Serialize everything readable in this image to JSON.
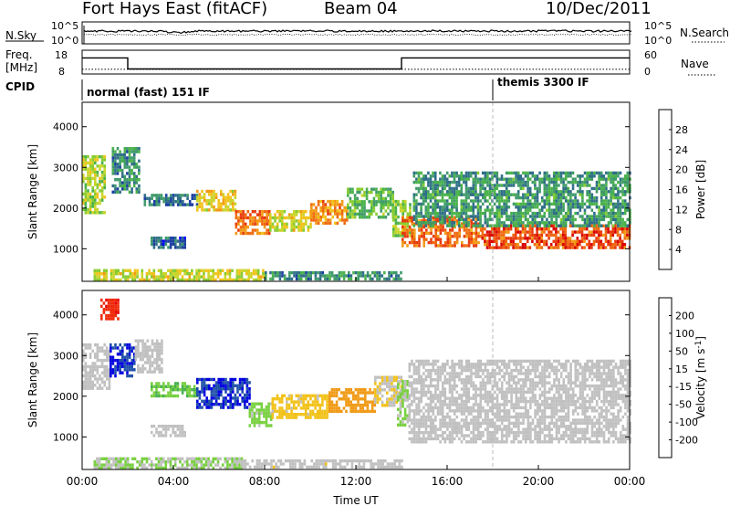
{
  "header": {
    "station": "Fort Hays East (fitACF)",
    "beam": "Beam 04",
    "date": "10/Dec/2011"
  },
  "top_panels": {
    "nsky": {
      "label": "N.Sky",
      "ticks": [
        "10^5",
        "10^0"
      ],
      "right_label": "N.Search",
      "right_ticks": [
        "10^5",
        "10^0"
      ]
    },
    "freq": {
      "label_line1": "Freq.",
      "label_line2": "[MHz]",
      "ticks": [
        "18",
        "8"
      ],
      "right_label": "Nave",
      "right_ticks": [
        "60",
        "0"
      ]
    },
    "cpid": {
      "label": "CPID",
      "modes": [
        {
          "name": "normal (fast) 151 IF",
          "start_hour": 0
        },
        {
          "name": "themis 3300 IF",
          "start_hour": 18
        }
      ]
    }
  },
  "chart_data": [
    {
      "type": "heatmap",
      "name": "power",
      "xlabel": "",
      "ylabel": "Slant Range [km]",
      "xlim": [
        0,
        24
      ],
      "ylim": [
        200,
        4600
      ],
      "y_ticks": [
        1000,
        2000,
        3000,
        4000
      ],
      "y_tick_labels": [
        "1000",
        "2000",
        "3000",
        "4000"
      ],
      "colorbar": {
        "label": "Power [dB]",
        "tick_labels": [
          "28",
          "24",
          "20",
          "16",
          "12",
          "8",
          "4"
        ],
        "tick_values": [
          28,
          24,
          20,
          16,
          12,
          8,
          4
        ],
        "range": [
          0,
          32
        ],
        "colors": [
          "#0000ff",
          "#1a3fa0",
          "#2f6e88",
          "#3f9a6a",
          "#49b24a",
          "#88cc30",
          "#c9d52a",
          "#f2c21a",
          "#f29a14",
          "#ef6a10",
          "#e83a0c",
          "#d80000"
        ]
      },
      "features": [
        {
          "x0": 0.0,
          "x1": 1.0,
          "y0": 1900,
          "y1": 3300,
          "level": 16
        },
        {
          "x0": 1.3,
          "x1": 2.5,
          "y0": 2400,
          "y1": 3500,
          "level": 8
        },
        {
          "x0": 2.7,
          "x1": 5.0,
          "y0": 2050,
          "y1": 2350,
          "level": 6
        },
        {
          "x0": 5.0,
          "x1": 6.7,
          "y0": 1950,
          "y1": 2450,
          "level": 20
        },
        {
          "x0": 6.7,
          "x1": 8.2,
          "y0": 1400,
          "y1": 1950,
          "level": 26
        },
        {
          "x0": 8.2,
          "x1": 10.0,
          "y0": 1450,
          "y1": 1950,
          "level": 18
        },
        {
          "x0": 10.0,
          "x1": 11.6,
          "y0": 1600,
          "y1": 2200,
          "level": 24
        },
        {
          "x0": 11.6,
          "x1": 13.6,
          "y0": 1800,
          "y1": 2500,
          "level": 12
        },
        {
          "x0": 13.6,
          "x1": 14.4,
          "y0": 1300,
          "y1": 2200,
          "level": 14
        },
        {
          "x0": 14.0,
          "x1": 17.5,
          "y0": 1100,
          "y1": 1800,
          "level": 26
        },
        {
          "x0": 17.5,
          "x1": 24.0,
          "y0": 1000,
          "y1": 1600,
          "level": 28
        },
        {
          "x0": 14.5,
          "x1": 24.0,
          "y0": 1600,
          "y1": 2900,
          "level": 9
        },
        {
          "x0": 3.0,
          "x1": 4.5,
          "y0": 1000,
          "y1": 1300,
          "level": 5
        },
        {
          "x0": 0.5,
          "x1": 8.0,
          "y0": 250,
          "y1": 500,
          "level": 18
        },
        {
          "x0": 8.0,
          "x1": 14.0,
          "y0": 250,
          "y1": 450,
          "level": 8
        }
      ]
    },
    {
      "type": "heatmap",
      "name": "velocity",
      "xlabel": "Time UT",
      "ylabel": "Slant Range [km]",
      "xlim": [
        0,
        24
      ],
      "ylim": [
        200,
        4600
      ],
      "x_ticks": [
        0,
        4,
        8,
        12,
        16,
        20,
        24
      ],
      "x_tick_labels": [
        "00:00",
        "04:00",
        "08:00",
        "12:00",
        "16:00",
        "20:00",
        "00:00"
      ],
      "y_ticks": [
        1000,
        2000,
        3000,
        4000
      ],
      "y_tick_labels": [
        "1000",
        "2000",
        "3000",
        "4000"
      ],
      "colorbar": {
        "label": "Velocity [m s",
        "label_sup": "-1",
        "label_end": "]",
        "tick_labels": [
          "200",
          "100",
          "50",
          "15",
          "-15",
          "-50",
          "-100",
          "-200"
        ],
        "tick_values": [
          200,
          100,
          50,
          15,
          -15,
          -50,
          -100,
          -200
        ],
        "colors": [
          "#e80000",
          "#f02a0a",
          "#f06a12",
          "#f09a16",
          "#f2c21a",
          "#c0c0c0",
          "#c0c0c0",
          "#78d040",
          "#48b050",
          "#2f8a70",
          "#1f50a8",
          "#0000e0"
        ]
      },
      "features": [
        {
          "x0": 0.0,
          "x1": 1.2,
          "y0": 2200,
          "y1": 3300,
          "vel": 0
        },
        {
          "x0": 1.2,
          "x1": 2.3,
          "y0": 2500,
          "y1": 3300,
          "vel": 220
        },
        {
          "x0": 2.3,
          "x1": 3.5,
          "y0": 2600,
          "y1": 3400,
          "vel": 0
        },
        {
          "x0": 3.0,
          "x1": 5.0,
          "y0": 2000,
          "y1": 2350,
          "vel": 80
        },
        {
          "x0": 5.0,
          "x1": 7.3,
          "y0": 1700,
          "y1": 2450,
          "vel": 220
        },
        {
          "x0": 7.3,
          "x1": 8.3,
          "y0": 1300,
          "y1": 1850,
          "vel": 60
        },
        {
          "x0": 8.3,
          "x1": 10.8,
          "y0": 1450,
          "y1": 2050,
          "vel": -60
        },
        {
          "x0": 10.8,
          "x1": 12.8,
          "y0": 1600,
          "y1": 2200,
          "vel": -110
        },
        {
          "x0": 12.8,
          "x1": 14.0,
          "y0": 1800,
          "y1": 2500,
          "vel": -40
        },
        {
          "x0": 13.8,
          "x1": 14.3,
          "y0": 1300,
          "y1": 2400,
          "vel": 45
        },
        {
          "x0": 14.3,
          "x1": 24.0,
          "y0": 900,
          "y1": 2900,
          "vel": 0
        },
        {
          "x0": 3.0,
          "x1": 4.5,
          "y0": 1000,
          "y1": 1300,
          "vel": 0
        },
        {
          "x0": 0.5,
          "x1": 7.0,
          "y0": 250,
          "y1": 500,
          "vel": 45
        },
        {
          "x0": 7.0,
          "x1": 14.0,
          "y0": 250,
          "y1": 450,
          "vel": -25
        },
        {
          "x0": 0.8,
          "x1": 1.6,
          "y0": 3900,
          "y1": 4400,
          "vel": -200
        }
      ]
    }
  ],
  "top_series": {
    "freq_mhz": [
      {
        "t0": 0.0,
        "t1": 2.0,
        "value": 16.0
      },
      {
        "t0": 2.0,
        "t1": 14.0,
        "value": 10.5
      },
      {
        "t0": 14.0,
        "t1": 24.0,
        "value": 16.0
      }
    ],
    "nave": [
      {
        "t0": 0.0,
        "t1": 24.0,
        "value": 14
      }
    ],
    "nsky_level": 1000,
    "nsearch_level": 10
  }
}
